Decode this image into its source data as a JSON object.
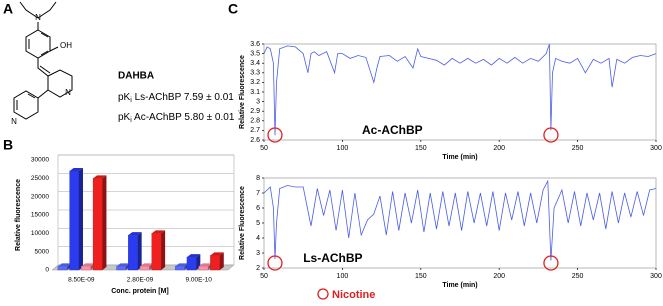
{
  "panels": [
    "A",
    "B",
    "C"
  ],
  "compound": {
    "name": "DAHBA",
    "atoms": [
      "N",
      "OH",
      "N",
      "N"
    ],
    "lines": [
      {
        "prefix": "pK",
        "sub": "i",
        "text": " Ls-AChBP 7.59 ± 0.01"
      },
      {
        "prefix": "pK",
        "sub": "i",
        "text": " Ac-AChBP 5.80 ± 0.01"
      }
    ]
  },
  "chart_data": [
    {
      "type": "bar3d",
      "y_label": "Relative fluorescence",
      "x_label": "Conc. protein [M]",
      "categories": [
        "8.50E-09",
        "2.80E-09",
        "9.00E-10"
      ],
      "series": [
        {
          "color": "#5a6cff",
          "values": [
            1000,
            1000,
            1000
          ]
        },
        {
          "color": "#2b3cf0",
          "values": [
            27000,
            9500,
            3500
          ]
        },
        {
          "color": "#ff8fa8",
          "values": [
            1000,
            1000,
            1000
          ]
        },
        {
          "color": "#f02020",
          "values": [
            25000,
            10000,
            4000
          ]
        }
      ],
      "ylim": [
        0,
        30000
      ],
      "yticks": [
        0,
        5000,
        10000,
        15000,
        20000,
        25000,
        30000
      ],
      "grid": true
    },
    {
      "type": "line",
      "y_label": "Relative Fluorescence",
      "x_label": "Time (min)",
      "annotation": "Ac-AChBP",
      "x": [
        50,
        52,
        54,
        56,
        57,
        58,
        60,
        65,
        70,
        75,
        78,
        80,
        82,
        85,
        90,
        95,
        97,
        100,
        105,
        110,
        115,
        120,
        122,
        124,
        130,
        135,
        140,
        145,
        148,
        150,
        155,
        160,
        165,
        170,
        175,
        180,
        185,
        190,
        195,
        200,
        205,
        210,
        215,
        220,
        225,
        230,
        232,
        233,
        234,
        236,
        240,
        245,
        250,
        255,
        260,
        265,
        270,
        272,
        275,
        280,
        285,
        290,
        295,
        300
      ],
      "series": [
        {
          "color": "#4a5ee8",
          "values": [
            3.5,
            3.57,
            3.55,
            3.4,
            2.65,
            3.2,
            3.55,
            3.58,
            3.57,
            3.5,
            3.3,
            3.5,
            3.52,
            3.48,
            3.52,
            3.3,
            3.5,
            3.5,
            3.45,
            3.48,
            3.46,
            3.2,
            3.35,
            3.47,
            3.48,
            3.42,
            3.47,
            3.35,
            3.55,
            3.47,
            3.45,
            3.43,
            3.38,
            3.45,
            3.4,
            3.45,
            3.4,
            3.44,
            3.38,
            3.45,
            3.4,
            3.46,
            3.4,
            3.45,
            3.42,
            3.5,
            3.6,
            2.7,
            3.3,
            3.45,
            3.42,
            3.4,
            3.45,
            3.3,
            3.44,
            3.4,
            3.45,
            3.15,
            3.44,
            3.4,
            3.46,
            3.48,
            3.47,
            3.5
          ]
        }
      ],
      "markers": {
        "color": "#e02020",
        "x": [
          57,
          233
        ]
      },
      "xlim": [
        50,
        300
      ],
      "xticks": [
        50,
        100,
        150,
        200,
        250,
        300
      ],
      "ylim": [
        2.6,
        3.6
      ],
      "yticks": [
        2.6,
        2.7,
        2.8,
        2.9,
        3,
        3.1,
        3.2,
        3.3,
        3.4,
        3.5,
        3.6
      ]
    },
    {
      "type": "line",
      "y_label": "Relative Fluorescence",
      "x_label": "Time (min)",
      "annotation": "Ls-AChBP",
      "x": [
        50,
        54,
        56,
        57,
        58,
        60,
        65,
        70,
        75,
        80,
        84,
        88,
        92,
        96,
        100,
        104,
        108,
        112,
        116,
        120,
        124,
        128,
        132,
        136,
        140,
        144,
        148,
        152,
        156,
        160,
        164,
        168,
        172,
        176,
        180,
        184,
        188,
        192,
        196,
        200,
        204,
        208,
        212,
        216,
        220,
        224,
        228,
        231,
        233,
        235,
        240,
        244,
        248,
        252,
        256,
        260,
        264,
        268,
        272,
        276,
        280,
        284,
        288,
        292,
        296,
        300
      ],
      "series": [
        {
          "color": "#4a5ee8",
          "values": [
            7.0,
            7.4,
            6,
            2.6,
            5,
            7.3,
            7.5,
            7.4,
            7.4,
            4.8,
            7.3,
            5.5,
            7.2,
            4.5,
            7.2,
            4.0,
            7.0,
            4.2,
            5.2,
            5.6,
            6.8,
            4.2,
            7.1,
            4.5,
            7.0,
            5.0,
            7.2,
            4.4,
            7.0,
            4.6,
            7.1,
            4.8,
            7.0,
            4.5,
            7.1,
            5.0,
            7.0,
            4.8,
            7.1,
            4.5,
            7.0,
            5.2,
            7.1,
            4.8,
            7.0,
            5.0,
            7.2,
            7.8,
            2.5,
            6.0,
            7.2,
            5.0,
            7.1,
            4.8,
            7.0,
            5.2,
            7.0,
            4.6,
            7.1,
            5.0,
            7.0,
            5.4,
            7.1,
            5.5,
            7.2,
            7.3
          ]
        }
      ],
      "markers": {
        "label": "Nicotine",
        "color": "#e02020",
        "x": [
          57,
          233
        ]
      },
      "xlim": [
        50,
        300
      ],
      "xticks": [
        50,
        100,
        150,
        200,
        250,
        300
      ],
      "ylim": [
        2,
        8
      ],
      "yticks": [
        2,
        3,
        4,
        5,
        6,
        7,
        8
      ]
    }
  ]
}
